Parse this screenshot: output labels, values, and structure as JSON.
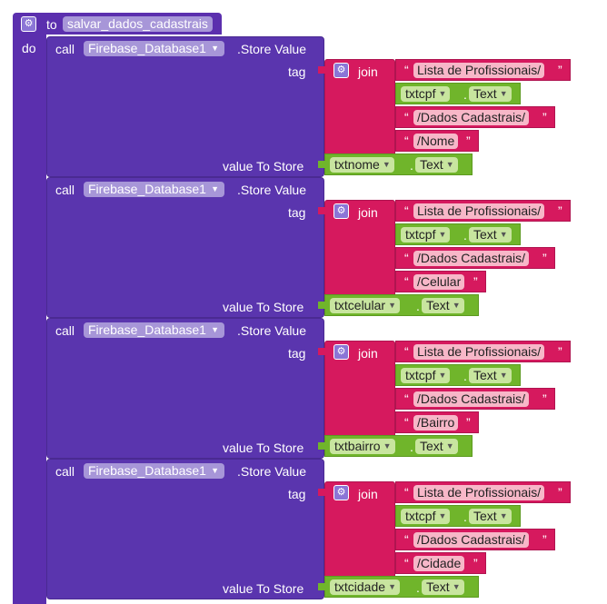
{
  "procedure": {
    "to_label": "to",
    "name": "salvar_dados_cadastrais",
    "do_label": "do"
  },
  "call_label": "call",
  "component": "Firebase_Database1",
  "method": ".Store Value",
  "tag_label": "tag",
  "value_label": "value To Store",
  "join_label": "join",
  "prefix": "Lista de Profissionais/",
  "cpf_component": "txtcpf",
  "text_prop": "Text",
  "section": "/Dados Cadastrais/",
  "calls": [
    {
      "field": "/Nome",
      "value_component": "txtnome"
    },
    {
      "field": "/Celular",
      "value_component": "txtcelular"
    },
    {
      "field": "/Bairro",
      "value_component": "txtbairro"
    },
    {
      "field": "/Cidade",
      "value_component": "txtcidade"
    }
  ],
  "icons": {
    "gear": "gear-icon",
    "dropdown": "dropdown-arrow-icon"
  },
  "colors": {
    "procedure": "#5b2fae",
    "text_block": "#d6195e",
    "component_block": "#70b52b"
  }
}
